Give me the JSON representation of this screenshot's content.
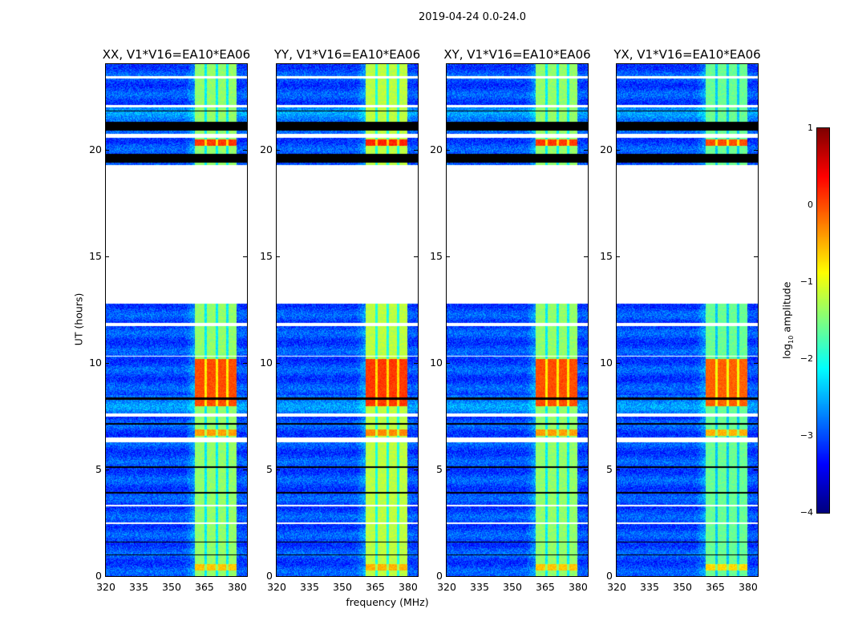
{
  "chart_data": {
    "type": "heatmap",
    "suptitle": "2019-04-24 0.0-24.0",
    "xlabel": "frequency (MHz)",
    "ylabel": "UT (hours)",
    "xlim": [
      320,
      384.4
    ],
    "ylim": [
      0,
      24
    ],
    "xticks": [
      "320",
      "335",
      "350",
      "365",
      "380"
    ],
    "xtick_values": [
      320,
      335,
      350,
      365,
      380
    ],
    "yticks": [
      "0",
      "5",
      "10",
      "15",
      "20"
    ],
    "ytick_values": [
      0,
      5,
      10,
      15,
      20
    ],
    "panels": [
      {
        "title": "XX, V1*V16=EA10*EA06",
        "band_boost": 0.0
      },
      {
        "title": "YY, V1*V16=EA10*EA06",
        "band_boost": 0.2
      },
      {
        "title": "XY, V1*V16=EA10*EA06",
        "band_boost": 0.0
      },
      {
        "title": "YX, V1*V16=EA10*EA06",
        "band_boost": -0.2
      }
    ],
    "colorbar": {
      "label": "log10 amplitude",
      "label_main": "log",
      "label_sub": "10",
      "label_rest": " amplitude",
      "range": [
        -4,
        1
      ],
      "ticks": [
        "1",
        "0",
        "−1",
        "−2",
        "−3",
        "−4"
      ],
      "tick_values": [
        1,
        0,
        -1,
        -2,
        -3,
        -4
      ],
      "colormap": "jet"
    },
    "background_level": -3.0,
    "rfi_band_mhz": [
      360.5,
      379.5
    ],
    "rfi_band_level": -1.4,
    "rfi_band_dividers_mhz": [
      365.5,
      370.5,
      375.2
    ],
    "strong_rfi_segments_hours": [
      [
        8.0,
        10.2,
        0.0
      ],
      [
        20.2,
        20.5,
        0.1
      ],
      [
        6.6,
        6.9,
        -0.4
      ],
      [
        0.3,
        0.6,
        -0.6
      ]
    ],
    "missing_data_hours": [
      [
        12.8,
        19.3
      ],
      [
        20.55,
        20.75
      ],
      [
        2.45,
        2.55
      ],
      [
        6.3,
        6.5
      ],
      [
        7.5,
        7.65
      ],
      [
        11.75,
        11.9
      ],
      [
        22.0,
        22.1
      ],
      [
        23.35,
        23.45
      ],
      [
        10.3,
        10.35
      ],
      [
        3.3,
        3.35
      ]
    ],
    "zero_data_hours": [
      [
        19.4,
        19.8
      ],
      [
        20.9,
        21.3
      ],
      [
        8.3,
        8.4
      ],
      [
        7.1,
        7.2
      ],
      [
        1.0,
        1.05
      ],
      [
        1.6,
        1.65
      ],
      [
        3.9,
        3.95
      ],
      [
        5.1,
        5.15
      ],
      [
        21.8,
        21.85
      ]
    ]
  }
}
